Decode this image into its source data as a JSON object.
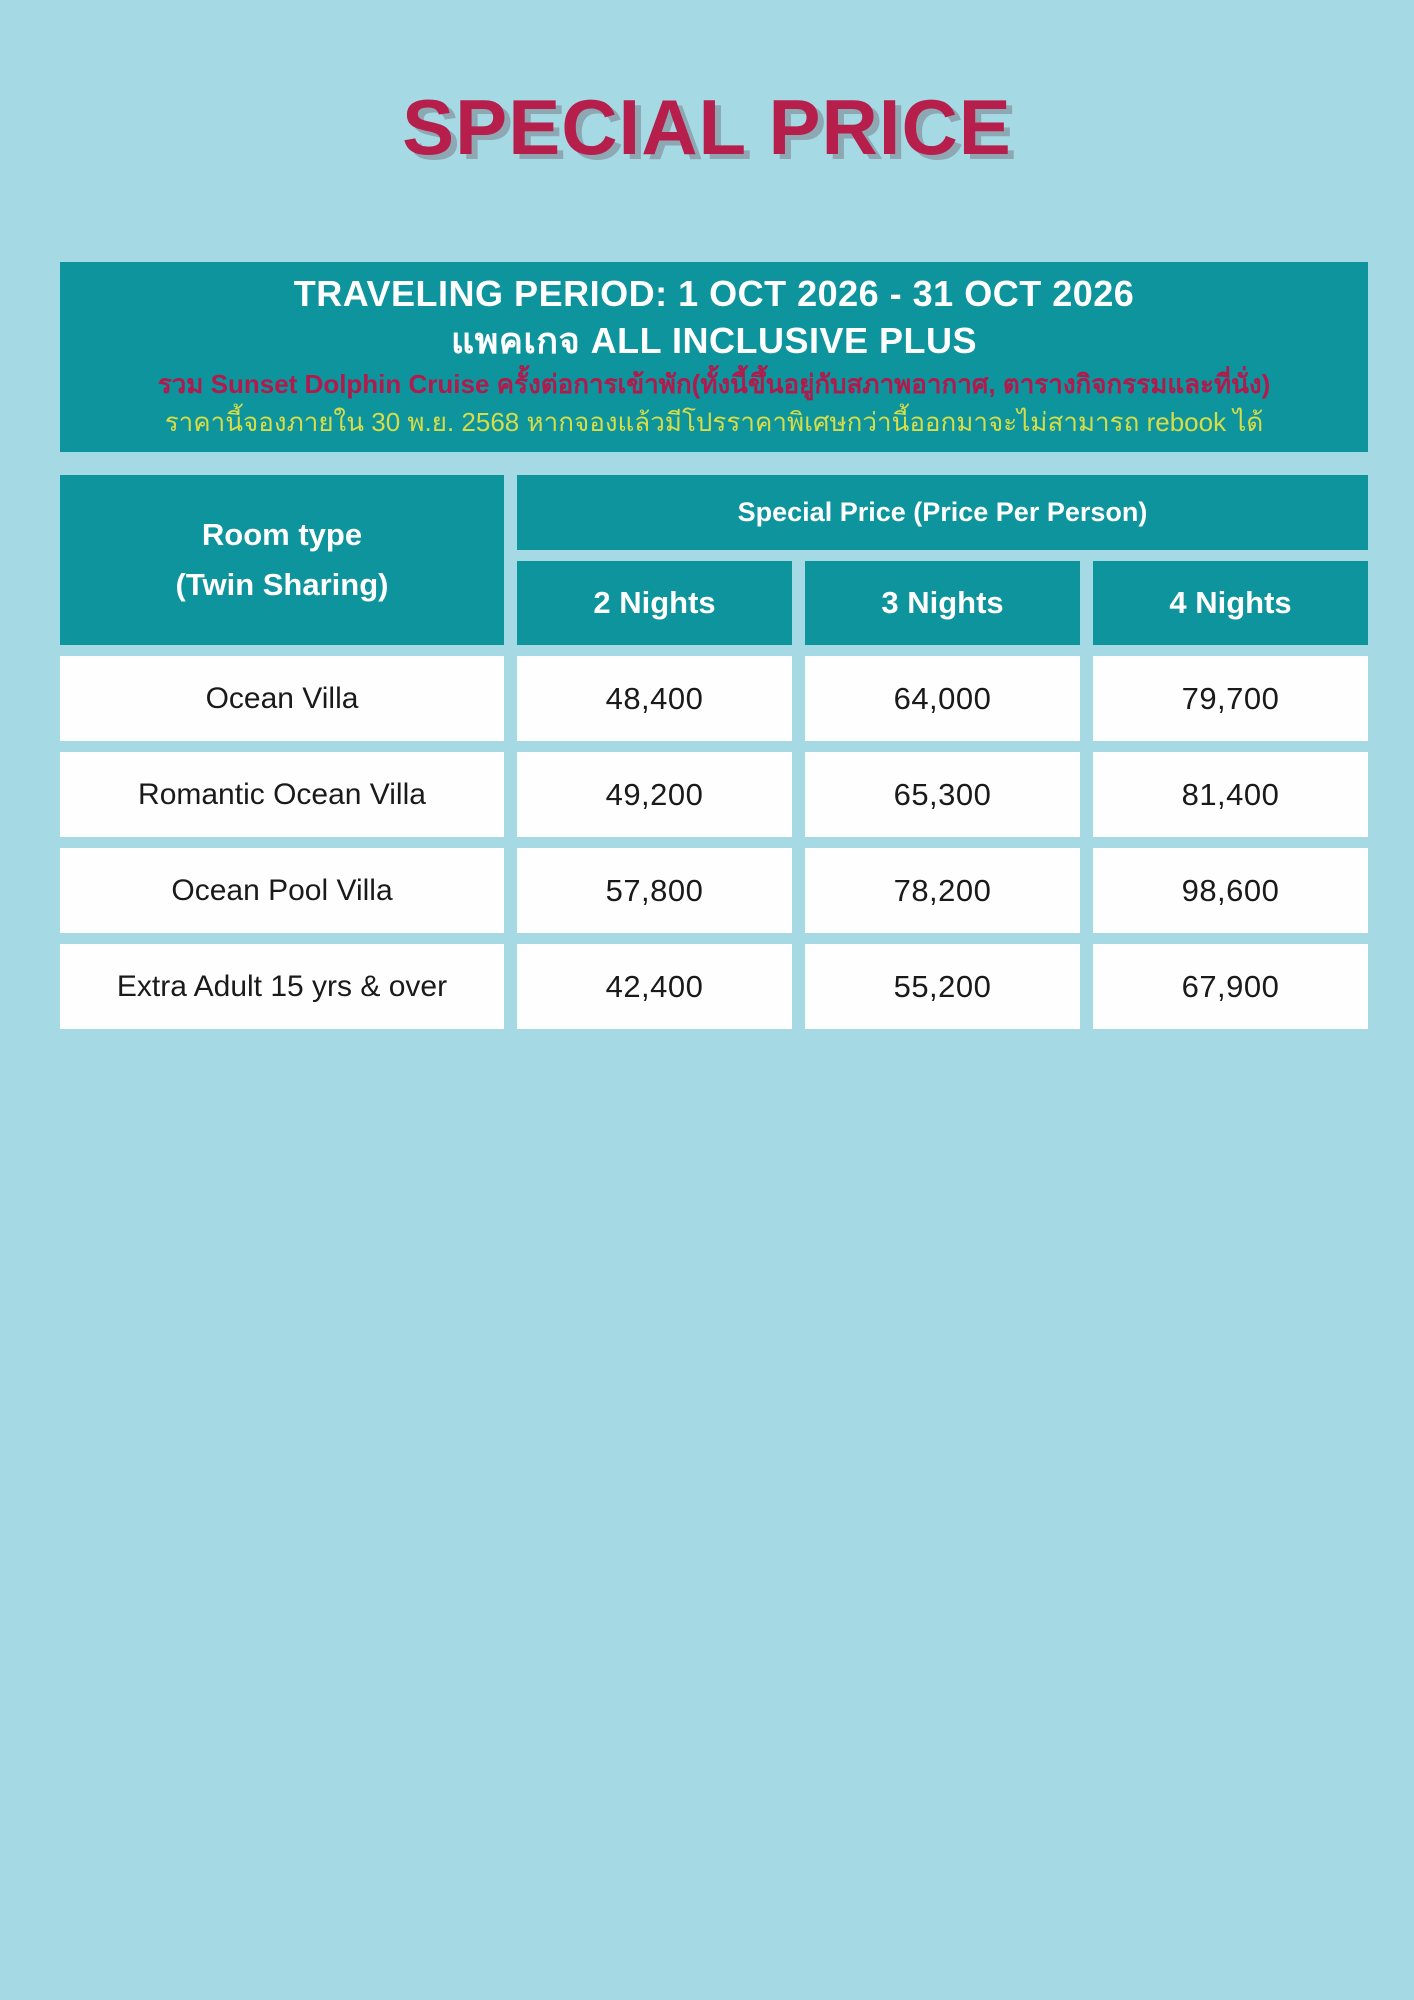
{
  "page": {
    "title": "SPECIAL PRICE"
  },
  "banner": {
    "traveling_period": "TRAVELING PERIOD: 1 OCT 2026 - 31 OCT 2026",
    "package_name": "แพคเกจ ALL INCLUSIVE PLUS",
    "cruise_note": "รวม Sunset Dolphin Cruise ครั้งต่อการเข้าพัก(ทั้งนี้ขึ้นอยู่กับสภาพอากาศ, ตารางกิจกรรมและที่นั่ง)",
    "booking_note": "ราคานี้จองภายใน 30 พ.ย. 2568 หากจองแล้วมีโปรราคาพิเศษกว่านี้ออกมาจะไม่สามารถ rebook ได้"
  },
  "table": {
    "room_header_line1": "Room type",
    "room_header_line2": "(Twin Sharing)",
    "price_header": "Special Price (Price Per Person)",
    "night_columns": [
      "2 Nights",
      "3 Nights",
      "4 Nights"
    ],
    "rows": [
      {
        "room": "Ocean Villa",
        "prices": [
          "48,400",
          "64,000",
          "79,700"
        ]
      },
      {
        "room": "Romantic Ocean Villa",
        "prices": [
          "49,200",
          "65,300",
          "81,400"
        ]
      },
      {
        "room": "Ocean Pool Villa",
        "prices": [
          "57,800",
          "78,200",
          "98,600"
        ]
      },
      {
        "room": "Extra Adult 15 yrs & over",
        "prices": [
          "42,400",
          "55,200",
          "67,900"
        ]
      }
    ]
  },
  "colors": {
    "background": "#a5dae5",
    "teal": "#0d949c",
    "title_crimson": "#b61e4b",
    "title_shadow": "#8da8b2",
    "note_red": "#b01a4c",
    "note_yellow": "#d6dd49",
    "cell_white": "#fefefe",
    "price_text": "#1a1a1a"
  }
}
